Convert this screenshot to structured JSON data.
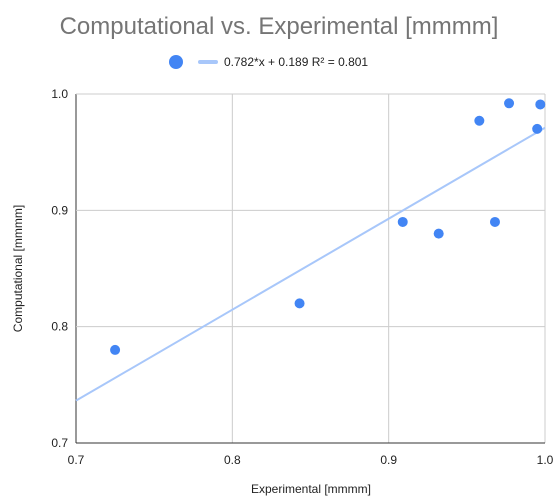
{
  "chart_data": {
    "type": "scatter",
    "title": "Computational vs. Experimental [mmmm]",
    "xlabel": "Experimental [mmmm]",
    "ylabel": "Computational [mmmm]",
    "xlim": [
      0.7,
      1.0
    ],
    "ylim": [
      0.7,
      1.0
    ],
    "xticks": [
      "0.7",
      "0.8",
      "0.9",
      "1.0"
    ],
    "yticks": [
      "0.7",
      "0.8",
      "0.9",
      "1.0"
    ],
    "grid": true,
    "legend_position": "top",
    "series": [
      {
        "points": [
          {
            "x": 0.725,
            "y": 0.78
          },
          {
            "x": 0.843,
            "y": 0.82
          },
          {
            "x": 0.909,
            "y": 0.89
          },
          {
            "x": 0.932,
            "y": 0.88
          },
          {
            "x": 0.958,
            "y": 0.977
          },
          {
            "x": 0.968,
            "y": 0.89
          },
          {
            "x": 0.977,
            "y": 0.992
          },
          {
            "x": 0.995,
            "y": 0.97
          },
          {
            "x": 0.997,
            "y": 0.991
          }
        ],
        "color": "#4285f4"
      }
    ],
    "trendline": {
      "label": "0.782*x + 0.189 R² = 0.801",
      "slope": 0.782,
      "intercept": 0.189,
      "color": "#a8c7fa"
    }
  }
}
